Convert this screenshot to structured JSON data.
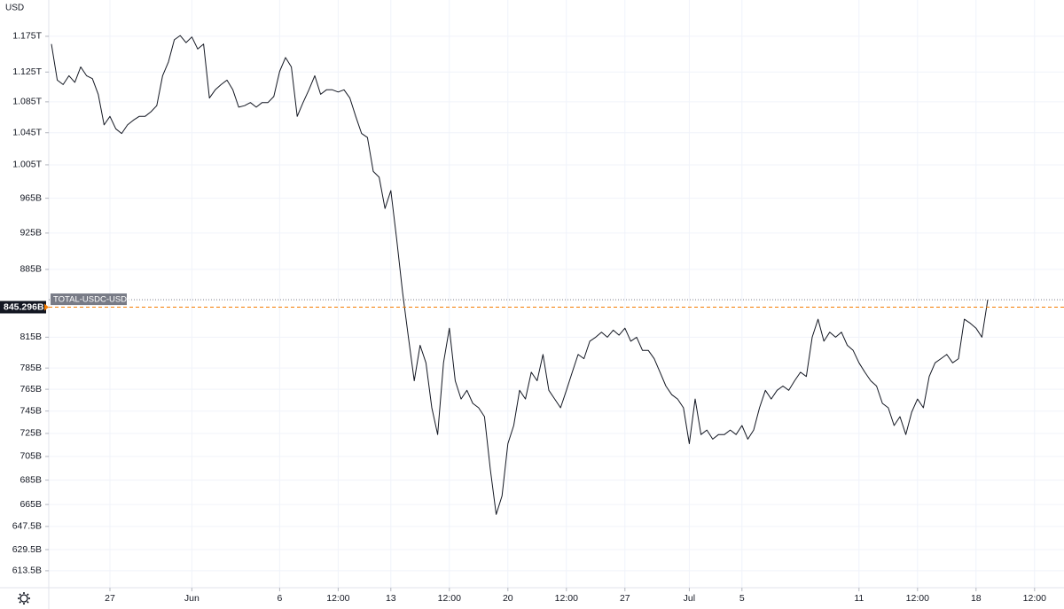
{
  "chart_data": {
    "type": "line",
    "y_label": "USD",
    "log_scale": true,
    "grid": true,
    "categories": [
      null,
      null,
      null,
      null,
      null,
      null,
      null,
      null,
      null,
      null,
      "27",
      null,
      null,
      null,
      null,
      null,
      null,
      null,
      null,
      null,
      null,
      null,
      null,
      null,
      "Jun",
      null,
      null,
      null,
      null,
      null,
      null,
      null,
      null,
      null,
      null,
      null,
      null,
      null,
      null,
      "6",
      null,
      null,
      null,
      null,
      null,
      null,
      null,
      null,
      null,
      "12:00",
      null,
      null,
      null,
      null,
      null,
      null,
      null,
      null,
      "13",
      null,
      null,
      null,
      null,
      null,
      null,
      null,
      null,
      null,
      "12:00",
      null,
      null,
      null,
      null,
      null,
      null,
      null,
      null,
      null,
      "20",
      null,
      null,
      null,
      null,
      null,
      null,
      null,
      null,
      null,
      "12:00",
      null,
      null,
      null,
      null,
      null,
      null,
      null,
      null,
      null,
      "27",
      null,
      null,
      null,
      null,
      null,
      null,
      null,
      null,
      null,
      null,
      "Jul",
      null,
      null,
      null,
      null,
      null,
      null,
      null,
      null,
      "5",
      null,
      null,
      null,
      null,
      null,
      null,
      null,
      null,
      null,
      null,
      null,
      null,
      null,
      null,
      null,
      null,
      null,
      null,
      null,
      "11",
      null,
      null,
      null,
      null,
      null,
      null,
      null,
      null,
      null,
      "12:00",
      null,
      null,
      null,
      null,
      null,
      null,
      null,
      null,
      null,
      "18",
      null,
      null,
      null,
      null,
      null,
      null,
      null,
      null,
      null,
      "12:00",
      null,
      null,
      null
    ],
    "series": [
      {
        "name": "TOTAL-USDC-USDT",
        "color": "#131722",
        "values": [
          1164,
          1114,
          1108,
          1120,
          1111,
          1132,
          1120,
          1116,
          1095,
          1055,
          1066,
          1050,
          1044,
          1055,
          1061,
          1066,
          1066,
          1072,
          1080,
          1120,
          1139,
          1170,
          1176,
          1166,
          1174,
          1157,
          1164,
          1090,
          1101,
          1108,
          1114,
          1101,
          1078,
          1080,
          1084,
          1078,
          1084,
          1084,
          1092,
          1126,
          1145,
          1132,
          1066,
          1084,
          1101,
          1120,
          1095,
          1101,
          1101,
          1098,
          1101,
          1090,
          1066,
          1044,
          1039,
          997,
          990,
          953,
          974,
          918,
          861,
          815,
          773,
          807,
          790,
          748,
          724,
          790,
          824,
          773,
          756,
          764,
          752,
          748,
          740,
          694,
          657,
          672,
          716,
          732,
          764,
          756,
          781,
          773,
          798,
          764,
          756,
          748,
          764,
          781,
          798,
          794,
          811,
          815,
          820,
          815,
          822,
          817,
          824,
          811,
          815,
          802,
          802,
          794,
          781,
          768,
          760,
          756,
          748,
          716,
          756,
          724,
          728,
          720,
          724,
          724,
          728,
          724,
          732,
          720,
          728,
          748,
          764,
          756,
          764,
          768,
          764,
          773,
          781,
          777,
          815,
          833,
          811,
          820,
          815,
          820,
          807,
          802,
          790,
          781,
          773,
          768,
          752,
          748,
          732,
          740,
          724,
          744,
          756,
          748,
          777,
          790,
          794,
          798,
          790,
          794,
          833,
          829,
          824,
          815,
          853,
          null,
          null,
          null,
          null,
          null,
          null,
          null,
          null,
          null,
          null,
          null
        ]
      }
    ],
    "ylim": [
      601,
      1228
    ],
    "yticks": [
      {
        "value": 1175,
        "label": "1.175T"
      },
      {
        "value": 1125,
        "label": "1.125T"
      },
      {
        "value": 1085,
        "label": "1.085T"
      },
      {
        "value": 1045,
        "label": "1.045T"
      },
      {
        "value": 1005,
        "label": "1.005T"
      },
      {
        "value": 965,
        "label": "965B"
      },
      {
        "value": 925,
        "label": "925B"
      },
      {
        "value": 885,
        "label": "885B"
      },
      {
        "value": 815,
        "label": "815B"
      },
      {
        "value": 785,
        "label": "785B"
      },
      {
        "value": 765,
        "label": "765B"
      },
      {
        "value": 745,
        "label": "745B"
      },
      {
        "value": 725,
        "label": "725B"
      },
      {
        "value": 705,
        "label": "705B"
      },
      {
        "value": 685,
        "label": "685B"
      },
      {
        "value": 665,
        "label": "665B"
      },
      {
        "value": 647.5,
        "label": "647.5B"
      },
      {
        "value": 629.5,
        "label": "629.5B"
      },
      {
        "value": 613.5,
        "label": "613.5B"
      }
    ],
    "last_price": {
      "value": 845.296,
      "label": "845.296B"
    },
    "price_line_color": "#f57c00"
  }
}
